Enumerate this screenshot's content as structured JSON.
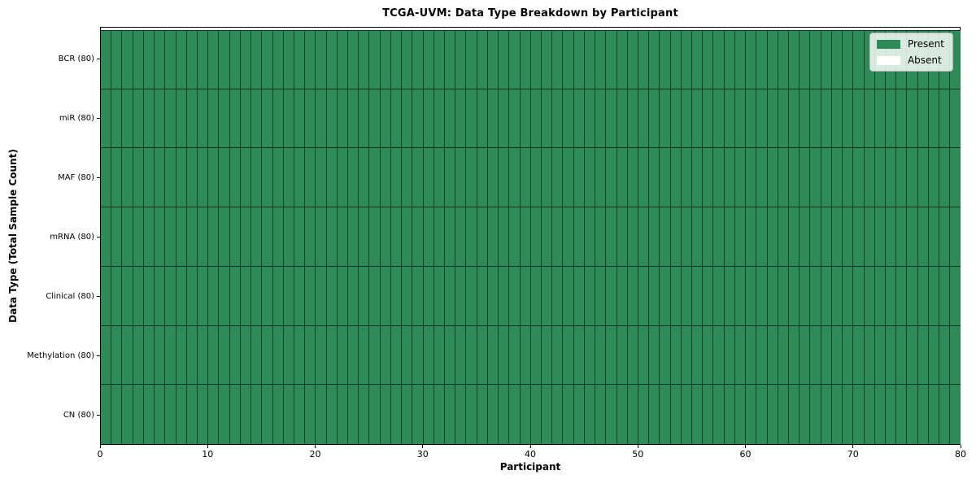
{
  "chart_data": {
    "type": "heatmap",
    "title": "TCGA-UVM: Data Type Breakdown by Participant",
    "xlabel": "Participant",
    "ylabel": "Data Type (Total Sample Count)",
    "x_range": [
      0,
      80
    ],
    "x_ticks": [
      0,
      10,
      20,
      30,
      40,
      50,
      60,
      70,
      80
    ],
    "n_participants": 80,
    "cell_states": [
      "present",
      "absent"
    ],
    "series": [
      {
        "name": "BCR",
        "label": "BCR (80)",
        "total_samples": 80,
        "present_participants": 80,
        "absent_participants": 0
      },
      {
        "name": "miR",
        "label": "miR (80)",
        "total_samples": 80,
        "present_participants": 80,
        "absent_participants": 0
      },
      {
        "name": "MAF",
        "label": "MAF (80)",
        "total_samples": 80,
        "present_participants": 80,
        "absent_participants": 0
      },
      {
        "name": "mRNA",
        "label": "mRNA (80)",
        "total_samples": 80,
        "present_participants": 80,
        "absent_participants": 0
      },
      {
        "name": "Clinical",
        "label": "Clinical (80)",
        "total_samples": 80,
        "present_participants": 80,
        "absent_participants": 0
      },
      {
        "name": "Methylation",
        "label": "Methylation (80)",
        "total_samples": 80,
        "present_participants": 80,
        "absent_participants": 0
      },
      {
        "name": "CN",
        "label": "CN (80)",
        "total_samples": 80,
        "present_participants": 80,
        "absent_participants": 0
      }
    ],
    "legend": {
      "position": "upper right",
      "entries": [
        {
          "label": "Present",
          "color": "#2e8b57"
        },
        {
          "label": "Absent",
          "color": "#ffffff"
        }
      ]
    },
    "colors": {
      "present": "#2e8b57",
      "absent": "#ffffff",
      "cell_edge": "#000000",
      "spine": "#000000",
      "legend_border": "#b5b5b5"
    },
    "grid": "per-cell borders",
    "legend_visible": true
  }
}
